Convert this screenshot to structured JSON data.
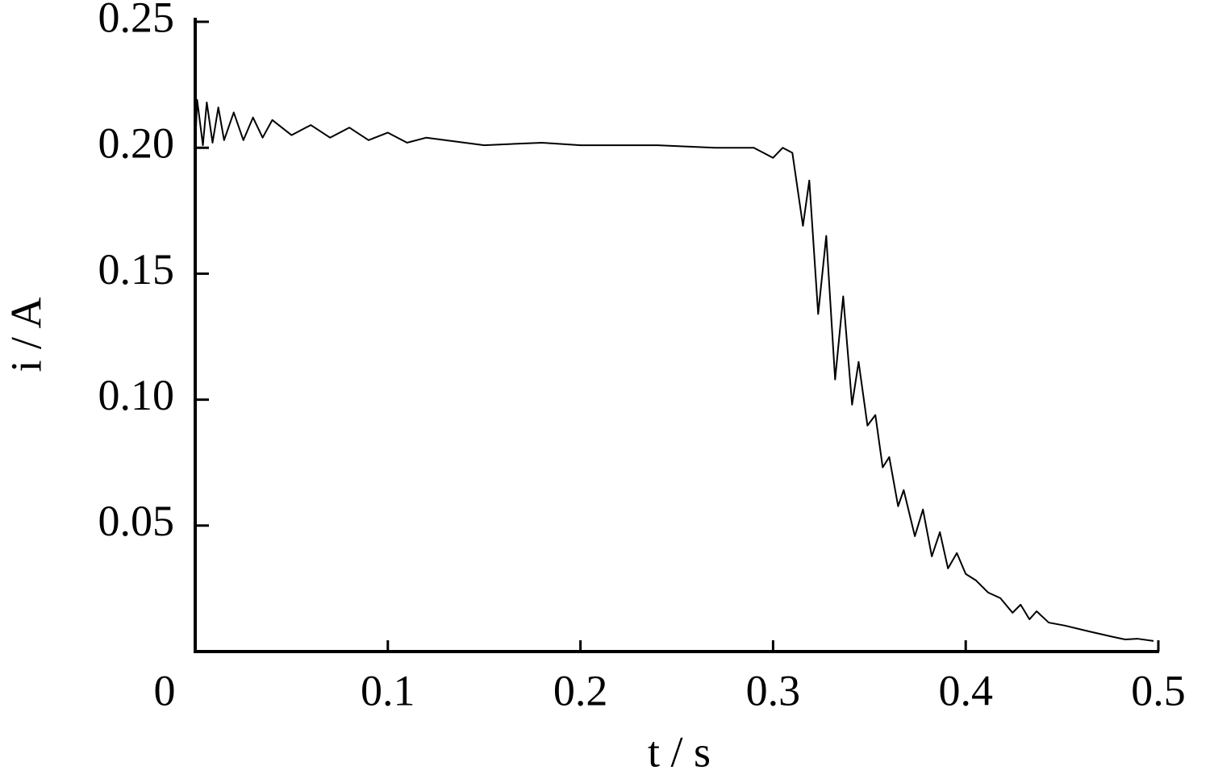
{
  "chart_data": {
    "type": "line",
    "xlabel": "t / s",
    "ylabel": "i / A",
    "xlim": [
      0,
      0.5
    ],
    "ylim": [
      0,
      0.25
    ],
    "xticks": [
      0,
      0.1,
      0.2,
      0.3,
      0.4,
      0.5
    ],
    "yticks": [
      0.05,
      {
        "value": 0.1,
        "label": "0.10"
      },
      0.15,
      {
        "value": 0.2,
        "label": "0.20"
      },
      0.25
    ],
    "grid": false,
    "series": [
      {
        "color": "#000000",
        "x": [
          0,
          0.001,
          0.004,
          0.006,
          0.009,
          0.012,
          0.015,
          0.02,
          0.025,
          0.03,
          0.035,
          0.04,
          0.05,
          0.06,
          0.07,
          0.08,
          0.09,
          0.1,
          0.11,
          0.12,
          0.15,
          0.18,
          0.2,
          0.24,
          0.27,
          0.29,
          0.3,
          0.305,
          0.31,
          0.3155,
          0.3188,
          0.3234,
          0.3276,
          0.3322,
          0.3364,
          0.341,
          0.3444,
          0.349,
          0.3531,
          0.3569,
          0.3603,
          0.3649,
          0.3678,
          0.3736,
          0.3778,
          0.3824,
          0.3866,
          0.3908,
          0.3954,
          0.4,
          0.4054,
          0.4117,
          0.418,
          0.4243,
          0.4285,
          0.4331,
          0.4368,
          0.4431,
          0.4515,
          0.464,
          0.4766,
          0.4828,
          0.4891,
          0.4975
        ],
        "values": [
          0.2,
          0.219,
          0.201,
          0.218,
          0.202,
          0.216,
          0.203,
          0.214,
          0.203,
          0.212,
          0.204,
          0.211,
          0.205,
          0.209,
          0.204,
          0.208,
          0.203,
          0.206,
          0.202,
          0.204,
          0.201,
          0.202,
          0.201,
          0.201,
          0.2,
          0.2,
          0.196,
          0.2,
          0.198,
          0.169,
          0.187,
          0.134,
          0.165,
          0.108,
          0.141,
          0.098,
          0.115,
          0.0897,
          0.0939,
          0.0731,
          0.0772,
          0.0577,
          0.0641,
          0.0458,
          0.0564,
          0.0378,
          0.0474,
          0.033,
          0.0391,
          0.0308,
          0.0282,
          0.0234,
          0.0212,
          0.0154,
          0.0186,
          0.0128,
          0.016,
          0.0115,
          0.0103,
          0.008,
          0.0058,
          0.0048,
          0.0051,
          0.0042
        ]
      }
    ]
  }
}
